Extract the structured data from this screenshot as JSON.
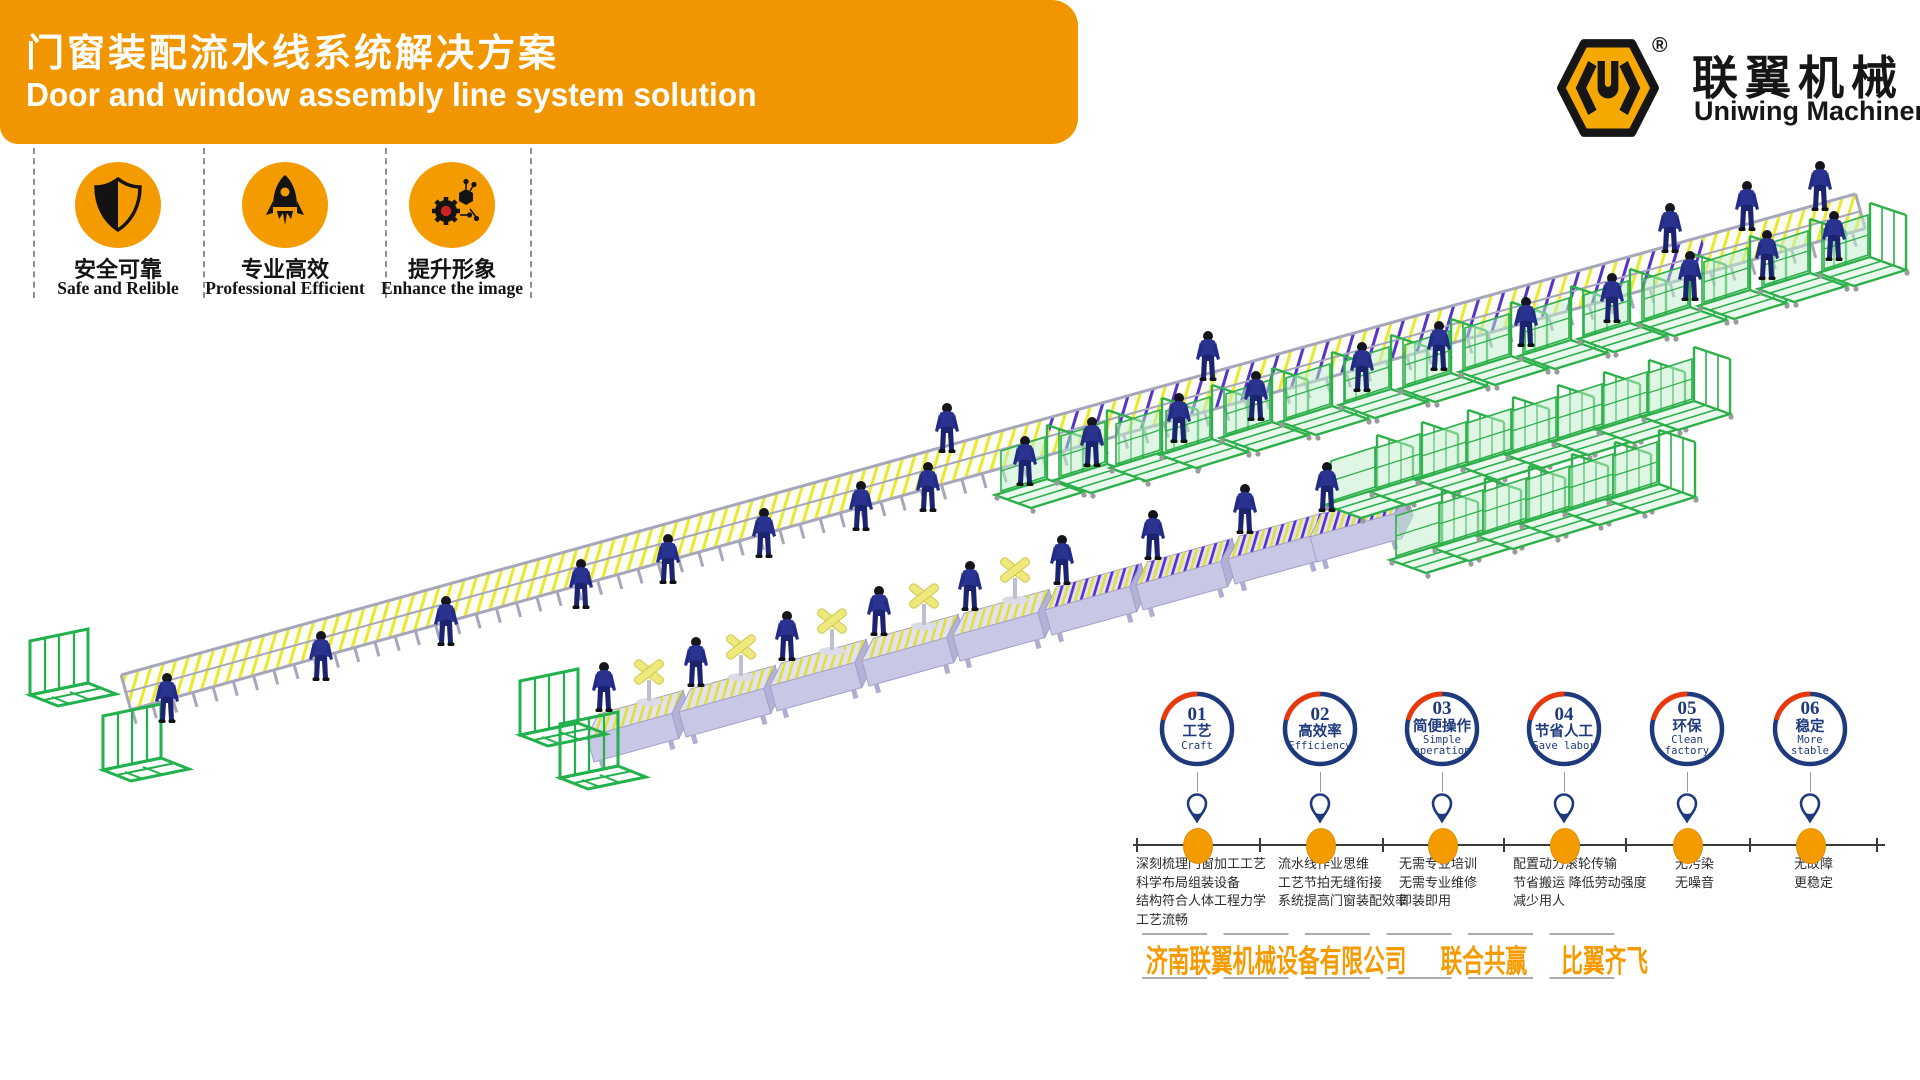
{
  "banner": {
    "title_zh": "门窗装配流水线系统解决方案",
    "title_en": "Door and window assembly line system solution"
  },
  "logo": {
    "brand_zh": "联翼机械",
    "brand_en": "Uniwing Machinery",
    "registered_mark": "®",
    "icon": "uniwing-hexagon-u-logo"
  },
  "features": [
    {
      "icon": "shield-icon",
      "label_zh": "安全可靠",
      "label_en": "Safe and Relible"
    },
    {
      "icon": "rocket-icon",
      "label_zh": "专业高效",
      "label_en": "Professional Efficient"
    },
    {
      "icon": "gear-network-icon",
      "label_zh": "提升形象",
      "label_en": "Enhance the image"
    }
  ],
  "timeline": {
    "pin_icon": "map-pin-icon",
    "items": [
      {
        "number": "01",
        "label_zh": "工艺",
        "label_en": "Craft",
        "desc": [
          "深刻梳理门窗加工工艺",
          "科学布局组装设备",
          "结构符合人体工程力学",
          "工艺流畅"
        ]
      },
      {
        "number": "02",
        "label_zh": "高效率",
        "label_en": "Efficiency",
        "desc": [
          "流水线作业思维",
          "工艺节拍无缝衔接",
          "系统提高门窗装配效率"
        ]
      },
      {
        "number": "03",
        "label_zh": "简便操作",
        "label_en": "Simple operation",
        "desc": [
          "无需专业培训",
          "无需专业维修",
          "即装即用"
        ]
      },
      {
        "number": "04",
        "label_zh": "节省人工",
        "label_en": "Save labor",
        "desc": [
          "配置动力滚轮传输",
          "节省搬运 降低劳动强度",
          "减少用人"
        ]
      },
      {
        "number": "05",
        "label_zh": "环保",
        "label_en": "Clean factory",
        "desc": [
          "无污染",
          "无噪音"
        ]
      },
      {
        "number": "06",
        "label_zh": "稳定",
        "label_en": "More stable",
        "desc": [
          "无故障",
          "更稳定"
        ]
      }
    ]
  },
  "footer": {
    "company": "济南联翼机械设备有限公司",
    "slogan1": "联合共赢",
    "slogan2": "比翼齐飞"
  },
  "colors": {
    "accent_orange": "#F29600",
    "navy": "#1E3A7C",
    "red": "#E8380D",
    "green": "#2DB04A",
    "roller_yellow": "#E9E932",
    "roller_purple": "#5633C9",
    "footer_orange": "#F59B00"
  }
}
